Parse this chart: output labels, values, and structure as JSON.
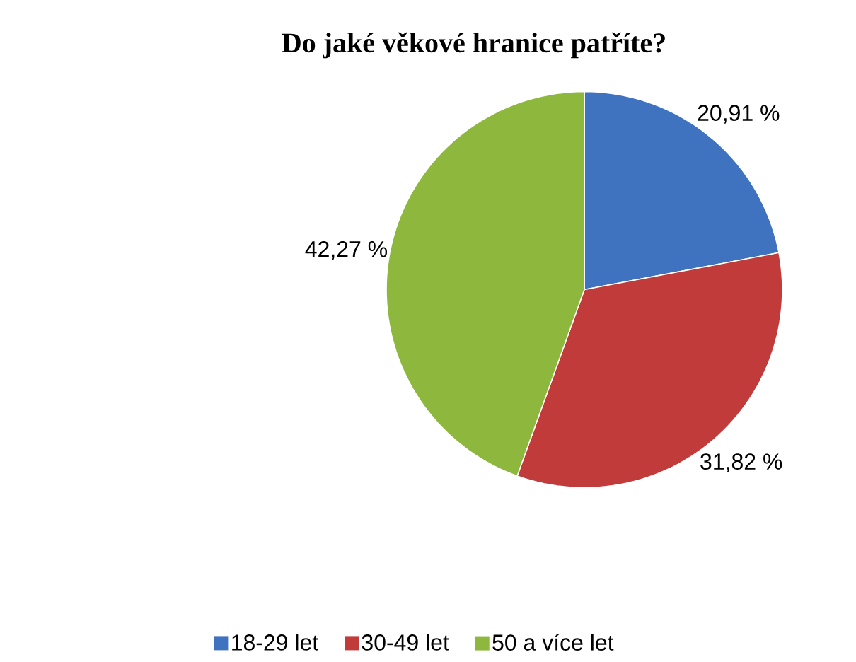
{
  "chart_data": {
    "type": "pie",
    "title": "Do jaké věkové hranice patříte?",
    "categories": [
      "18-29 let",
      "30-49 let",
      "50 a více let"
    ],
    "values": [
      20.91,
      31.82,
      42.27
    ],
    "value_labels": [
      "20,91 %",
      "31,82 %",
      "42,27 %"
    ],
    "colors": [
      "#3f72bf",
      "#c03b3a",
      "#8db83d"
    ],
    "legend": "bottom"
  }
}
